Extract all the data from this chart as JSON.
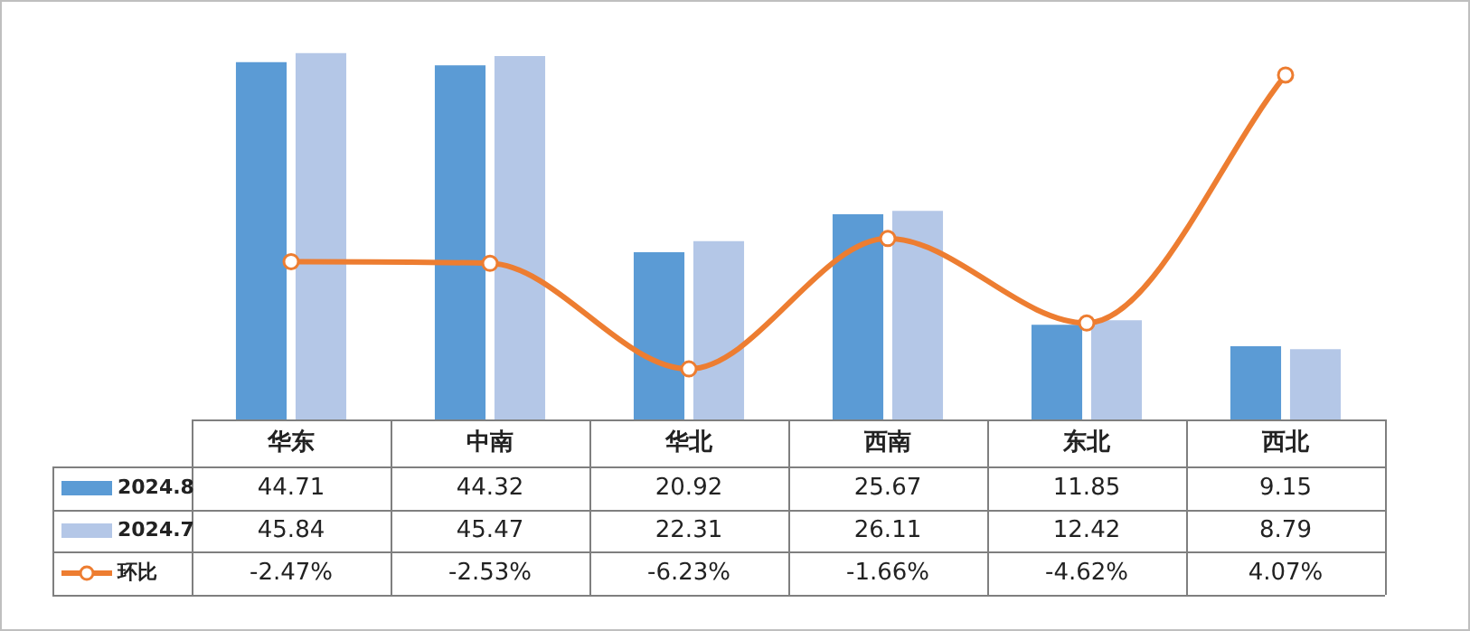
{
  "chart_data": {
    "type": "bar",
    "categories": [
      "华东",
      "中南",
      "华北",
      "西南",
      "东北",
      "西北"
    ],
    "series": [
      {
        "name": "2024.8",
        "color": "#5b9bd5",
        "values": [
          44.71,
          44.32,
          20.92,
          25.67,
          11.85,
          9.15
        ]
      },
      {
        "name": "2024.7",
        "color": "#b4c7e7",
        "values": [
          45.84,
          45.47,
          22.31,
          26.11,
          12.42,
          8.79
        ]
      },
      {
        "name": "环比",
        "type": "line",
        "axis": "y2",
        "color": "#ed7d31",
        "values": [
          -2.47,
          -2.53,
          -6.23,
          -1.66,
          -4.62,
          4.07
        ],
        "value_labels": [
          "-2.47%",
          "-2.53%",
          "-6.23%",
          "-1.66%",
          "-4.62%",
          "4.07%"
        ]
      }
    ],
    "tick_labels": false,
    "data_labels": true,
    "legend": "bottom left",
    "marker": "circle"
  }
}
